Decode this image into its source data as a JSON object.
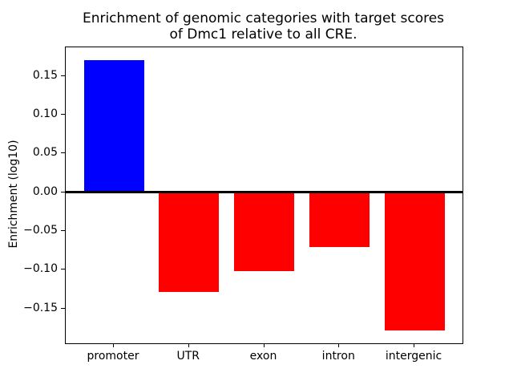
{
  "figure": {
    "title": "Enrichment of genomic categories with target scores\nof Dmc1 relative to all CRE.",
    "ylabel": "Enrichment (log10)"
  },
  "chart_data": {
    "type": "bar",
    "title": "Enrichment of genomic categories with target scores\nof Dmc1 relative to all CRE.",
    "xlabel": "",
    "ylabel": "Enrichment (log10)",
    "categories": [
      "promoter",
      "UTR",
      "exon",
      "intron",
      "intergenic"
    ],
    "values": [
      0.17,
      -0.129,
      -0.102,
      -0.071,
      -0.178
    ],
    "bar_colors": [
      "#0000ff",
      "#ff0000",
      "#ff0000",
      "#ff0000",
      "#ff0000"
    ],
    "positive_color": "#0000ff",
    "negative_color": "#ff0000",
    "bar_width_fraction": 0.8,
    "ylim": [
      -0.195,
      0.187
    ],
    "xlim": [
      -0.64,
      4.64
    ],
    "yticks": [
      0.15,
      0.1,
      0.05,
      0.0,
      -0.05,
      -0.1,
      -0.15
    ],
    "ytick_labels": [
      "0.15",
      "0.10",
      "0.05",
      "0.00",
      "−0.05",
      "−0.10",
      "−0.15"
    ],
    "zero_line": true,
    "grid": false,
    "legend": null
  }
}
